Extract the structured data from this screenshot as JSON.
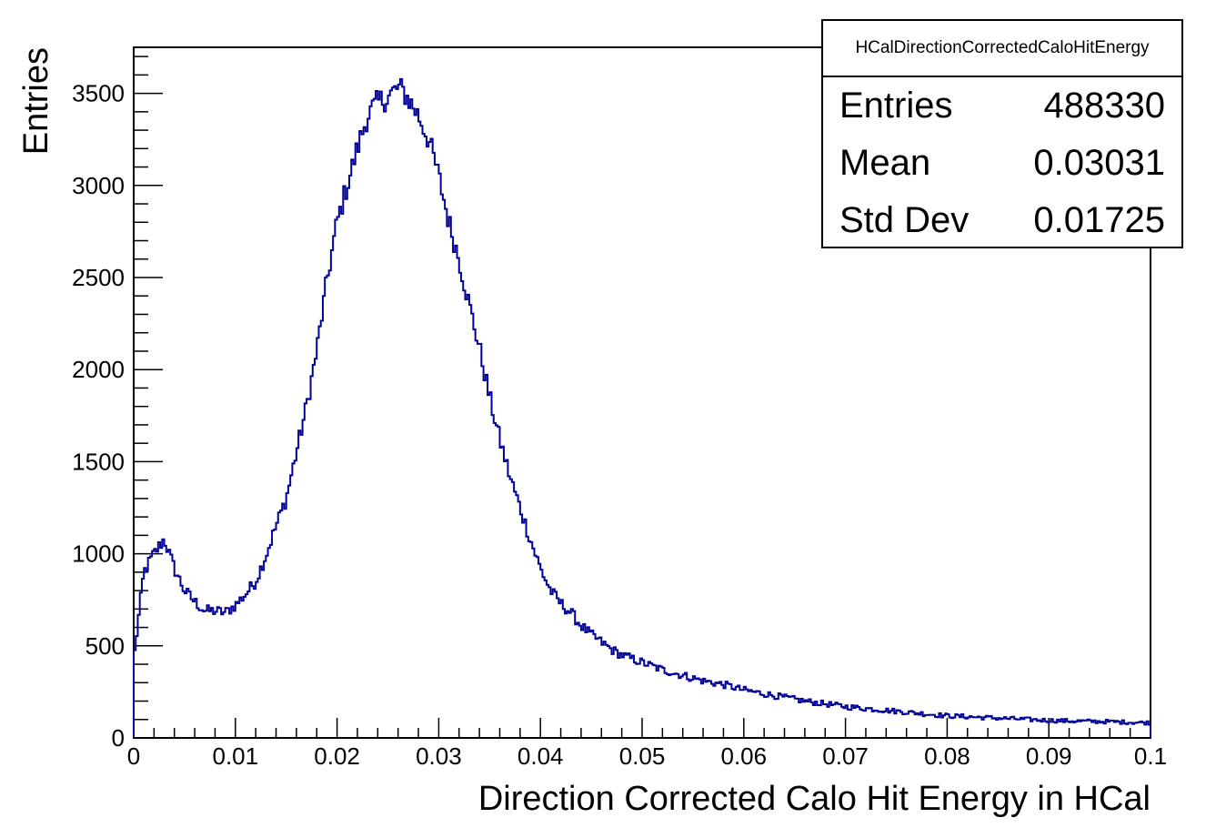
{
  "chart_data": {
    "type": "histogram",
    "xlabel": "Direction Corrected Calo Hit Energy in HCal",
    "ylabel": "Entries",
    "xlim": [
      0,
      0.1
    ],
    "ylim": [
      0,
      3750
    ],
    "xticks": [
      "0",
      "0.01",
      "0.02",
      "0.03",
      "0.04",
      "0.05",
      "0.06",
      "0.07",
      "0.08",
      "0.09",
      "0.1"
    ],
    "yticks": [
      "0",
      "500",
      "1000",
      "1500",
      "2000",
      "2500",
      "3000",
      "3500"
    ],
    "line_color": "#000099",
    "bin_width": 0.0002,
    "x": [
      0.0,
      0.001,
      0.002,
      0.003,
      0.004,
      0.005,
      0.006,
      0.007,
      0.008,
      0.009,
      0.01,
      0.011,
      0.012,
      0.013,
      0.014,
      0.015,
      0.016,
      0.017,
      0.018,
      0.019,
      0.02,
      0.021,
      0.022,
      0.023,
      0.024,
      0.025,
      0.026,
      0.0265,
      0.027,
      0.028,
      0.029,
      0.03,
      0.031,
      0.032,
      0.033,
      0.034,
      0.035,
      0.036,
      0.037,
      0.038,
      0.039,
      0.04,
      0.041,
      0.042,
      0.043,
      0.044,
      0.045,
      0.046,
      0.047,
      0.048,
      0.049,
      0.05,
      0.052,
      0.054,
      0.056,
      0.058,
      0.06,
      0.062,
      0.064,
      0.066,
      0.068,
      0.07,
      0.072,
      0.074,
      0.076,
      0.078,
      0.08,
      0.082,
      0.084,
      0.086,
      0.088,
      0.09,
      0.092,
      0.094,
      0.096,
      0.098,
      0.1
    ],
    "y": [
      420,
      900,
      1000,
      1080,
      920,
      800,
      740,
      690,
      690,
      680,
      720,
      780,
      850,
      990,
      1150,
      1300,
      1550,
      1800,
      2100,
      2480,
      2800,
      3000,
      3200,
      3380,
      3450,
      3480,
      3530,
      3510,
      3470,
      3380,
      3250,
      3050,
      2800,
      2600,
      2350,
      2120,
      1850,
      1620,
      1420,
      1250,
      1080,
      920,
      800,
      730,
      680,
      610,
      560,
      520,
      480,
      450,
      430,
      410,
      370,
      340,
      310,
      290,
      260,
      240,
      220,
      200,
      185,
      170,
      160,
      150,
      140,
      130,
      120,
      115,
      110,
      105,
      100,
      95,
      92,
      90,
      88,
      85,
      82
    ]
  },
  "stats_box": {
    "title": "HCalDirectionCorrectedCaloHitEnergy",
    "rows": [
      {
        "label": "Entries",
        "value": "488330"
      },
      {
        "label": "Mean",
        "value": "0.03031"
      },
      {
        "label": "Std Dev",
        "value": "0.01725"
      }
    ]
  }
}
